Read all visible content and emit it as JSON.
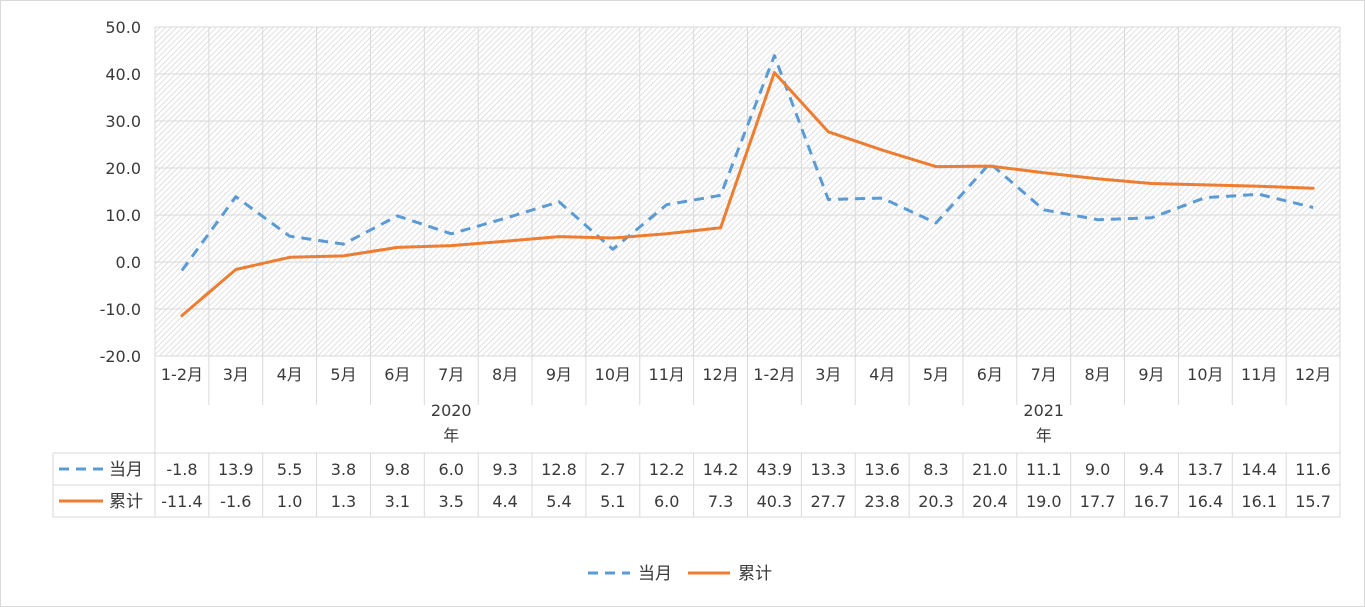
{
  "chart_data": {
    "type": "line",
    "categories": [
      "1-2月",
      "3月",
      "4月",
      "5月",
      "6月",
      "7月",
      "8月",
      "9月",
      "10月",
      "11月",
      "12月",
      "1-2月",
      "3月",
      "4月",
      "5月",
      "6月",
      "7月",
      "8月",
      "9月",
      "10月",
      "11月",
      "12月"
    ],
    "groups": [
      {
        "label_year": "2020",
        "label_suffix": "年",
        "count": 11
      },
      {
        "label_year": "2021",
        "label_suffix": "年",
        "count": 11
      }
    ],
    "yticks": [
      "50.0",
      "40.0",
      "30.0",
      "20.0",
      "10.0",
      "0.0",
      "-10.0",
      "-20.0"
    ],
    "ylim": [
      -20,
      50
    ],
    "grid": true,
    "legend_position": "bottom",
    "series": [
      {
        "name": "当月",
        "style": "dashed",
        "color": "#5b9bd5",
        "values": [
          -1.8,
          13.9,
          5.5,
          3.8,
          9.8,
          6.0,
          9.3,
          12.8,
          2.7,
          12.2,
          14.2,
          43.9,
          13.3,
          13.6,
          8.3,
          21.0,
          11.1,
          9.0,
          9.4,
          13.7,
          14.4,
          11.6
        ],
        "table_values": [
          "-1.8",
          "13.9",
          "5.5",
          "3.8",
          "9.8",
          "6.0",
          "9.3",
          "12.8",
          "2.7",
          "12.2",
          "14.2",
          "43.9",
          "13.3",
          "13.6",
          "8.3",
          "21.0",
          "11.1",
          "9.0",
          "9.4",
          "13.7",
          "14.4",
          "11.6"
        ]
      },
      {
        "name": "累计",
        "style": "solid",
        "color": "#ed7d31",
        "values": [
          -11.4,
          -1.6,
          1.0,
          1.3,
          3.1,
          3.5,
          4.4,
          5.4,
          5.1,
          6.0,
          7.3,
          40.3,
          27.7,
          23.8,
          20.3,
          20.4,
          19.0,
          17.7,
          16.7,
          16.4,
          16.1,
          15.7
        ],
        "table_values": [
          "-11.4",
          "-1.6",
          "1.0",
          "1.3",
          "3.1",
          "3.5",
          "4.4",
          "5.4",
          "5.1",
          "6.0",
          "7.3",
          "40.3",
          "27.7",
          "23.8",
          "20.3",
          "20.4",
          "19.0",
          "17.7",
          "16.7",
          "16.4",
          "16.1",
          "15.7"
        ]
      }
    ]
  }
}
